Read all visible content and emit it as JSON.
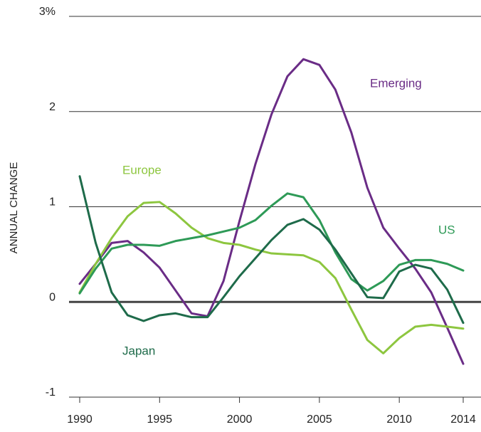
{
  "chart_data": {
    "type": "line",
    "ylabel": "ANNUAL CHANGE",
    "x": [
      1990,
      1991,
      1992,
      1993,
      1994,
      1995,
      1996,
      1997,
      1998,
      1999,
      2000,
      2001,
      2002,
      2003,
      2004,
      2005,
      2006,
      2007,
      2008,
      2009,
      2010,
      2011,
      2012,
      2013,
      2014
    ],
    "series": [
      {
        "name": "Emerging",
        "color": "#6a2c86",
        "values": [
          0.19,
          0.4,
          0.62,
          0.64,
          0.52,
          0.36,
          0.12,
          -0.12,
          -0.15,
          0.22,
          0.85,
          1.45,
          1.97,
          2.37,
          2.55,
          2.49,
          2.23,
          1.78,
          1.2,
          0.78,
          0.56,
          0.35,
          0.1,
          -0.27,
          -0.65
        ]
      },
      {
        "name": "Europe",
        "color": "#8dc63f",
        "values": [
          0.1,
          0.4,
          0.67,
          0.9,
          1.04,
          1.05,
          0.93,
          0.78,
          0.67,
          0.62,
          0.6,
          0.55,
          0.51,
          0.5,
          0.49,
          0.42,
          0.25,
          -0.08,
          -0.4,
          -0.54,
          -0.38,
          -0.26,
          -0.24,
          -0.26,
          -0.28
        ]
      },
      {
        "name": "US",
        "color": "#2e9a57",
        "values": [
          0.09,
          0.35,
          0.56,
          0.6,
          0.6,
          0.59,
          0.64,
          0.67,
          0.7,
          0.74,
          0.78,
          0.86,
          1.01,
          1.14,
          1.1,
          0.86,
          0.52,
          0.24,
          0.12,
          0.22,
          0.39,
          0.44,
          0.44,
          0.4,
          0.33
        ]
      },
      {
        "name": "Japan",
        "color": "#1e6b4a",
        "values": [
          1.32,
          0.62,
          0.1,
          -0.14,
          -0.2,
          -0.14,
          -0.12,
          -0.16,
          -0.16,
          0.05,
          0.27,
          0.46,
          0.65,
          0.81,
          0.87,
          0.76,
          0.55,
          0.3,
          0.05,
          0.04,
          0.32,
          0.39,
          0.35,
          0.13,
          -0.22
        ]
      }
    ],
    "xlim": [
      1990,
      2014
    ],
    "xticks": [
      1990,
      1995,
      2000,
      2005,
      2010,
      2014
    ],
    "ylim": [
      -1,
      3
    ],
    "yticks": [
      -1,
      0,
      1,
      2,
      {
        "value": 3,
        "label": "3%"
      }
    ],
    "grid": true
  }
}
